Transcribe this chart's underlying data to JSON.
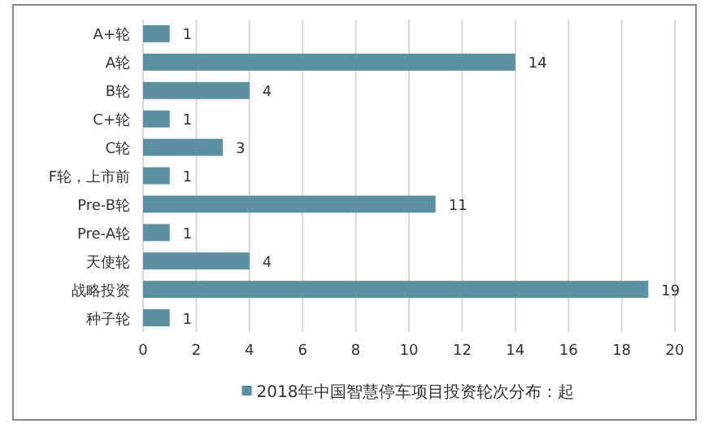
{
  "chart_data": {
    "type": "bar",
    "orientation": "horizontal",
    "categories": [
      "A+轮",
      "A轮",
      "B轮",
      "C+轮",
      "C轮",
      "F轮，上市前",
      "Pre-B轮",
      "Pre-A轮",
      "天使轮",
      "战略投资",
      "种子轮"
    ],
    "series": [
      {
        "name": "2018年中国智慧停车项目投资轮次分布：起",
        "color": "#5b8fa3",
        "values": [
          1,
          14,
          4,
          1,
          3,
          1,
          11,
          1,
          4,
          19,
          1
        ]
      }
    ],
    "xlim": [
      0,
      20
    ],
    "xticks": [
      0,
      2,
      4,
      6,
      8,
      10,
      12,
      14,
      16,
      18,
      20
    ],
    "grid": "x",
    "legend": "bottom",
    "data_labels": true
  }
}
